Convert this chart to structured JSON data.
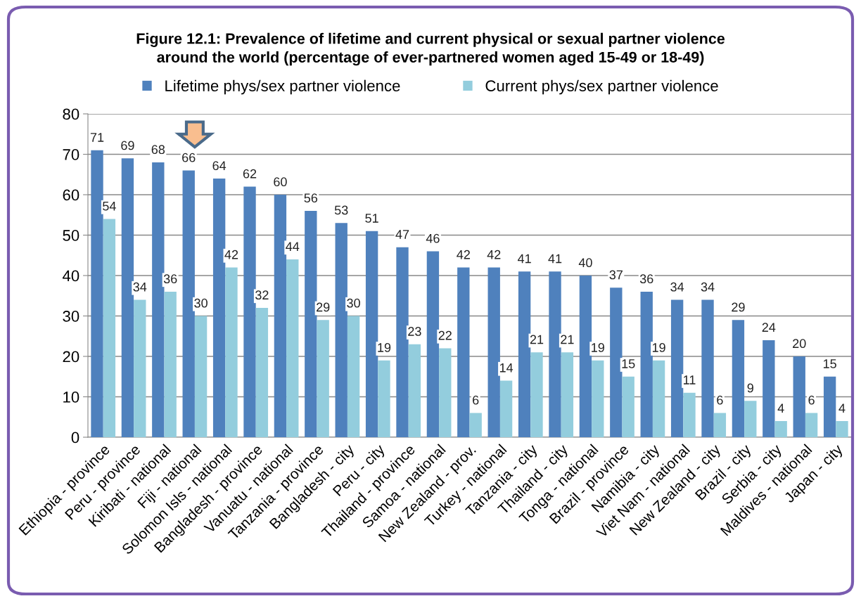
{
  "chart_data": {
    "type": "bar",
    "title": "Figure 12.1: Prevalence of lifetime and current physical or sexual partner violence\naround the world (percentage of ever-partnered women aged 15-49 or 18-49)",
    "categories": [
      "Ethiopia - province",
      "Peru - province",
      "Kiribati - national",
      "Fiji - national",
      "Solomon Isls - national",
      "Bangladesh - province",
      "Vanuatu - national",
      "Tanzania - province",
      "Bangladesh - city",
      "Peru - city",
      "Thailand - province",
      "Samoa - national",
      "New Zealand - prov.",
      "Turkey - national",
      "Tanzania - city",
      "Thailand - city",
      "Tonga - national",
      "Brazil - province",
      "Namibia - city",
      "Viet Nam - national",
      "New Zealand - city",
      "Brazil - city",
      "Serbia - city",
      "Maldives - national",
      "Japan - city"
    ],
    "series": [
      {
        "name": "Lifetime phys/sex partner violence",
        "color": "#4f81bd",
        "values": [
          71,
          69,
          68,
          66,
          64,
          62,
          60,
          56,
          53,
          51,
          47,
          46,
          42,
          42,
          41,
          41,
          40,
          37,
          36,
          34,
          34,
          29,
          24,
          20,
          15
        ]
      },
      {
        "name": "Current phys/sex partner violence",
        "color": "#93cddd",
        "values": [
          54,
          34,
          36,
          30,
          42,
          32,
          44,
          29,
          30,
          19,
          23,
          22,
          6,
          14,
          21,
          21,
          19,
          15,
          19,
          11,
          6,
          9,
          4,
          6,
          4
        ]
      }
    ],
    "ylim": [
      0,
      80
    ],
    "yticks": [
      0,
      10,
      20,
      30,
      40,
      50,
      60,
      70,
      80
    ],
    "grid": "y",
    "legend": "top",
    "data_labels": true
  }
}
